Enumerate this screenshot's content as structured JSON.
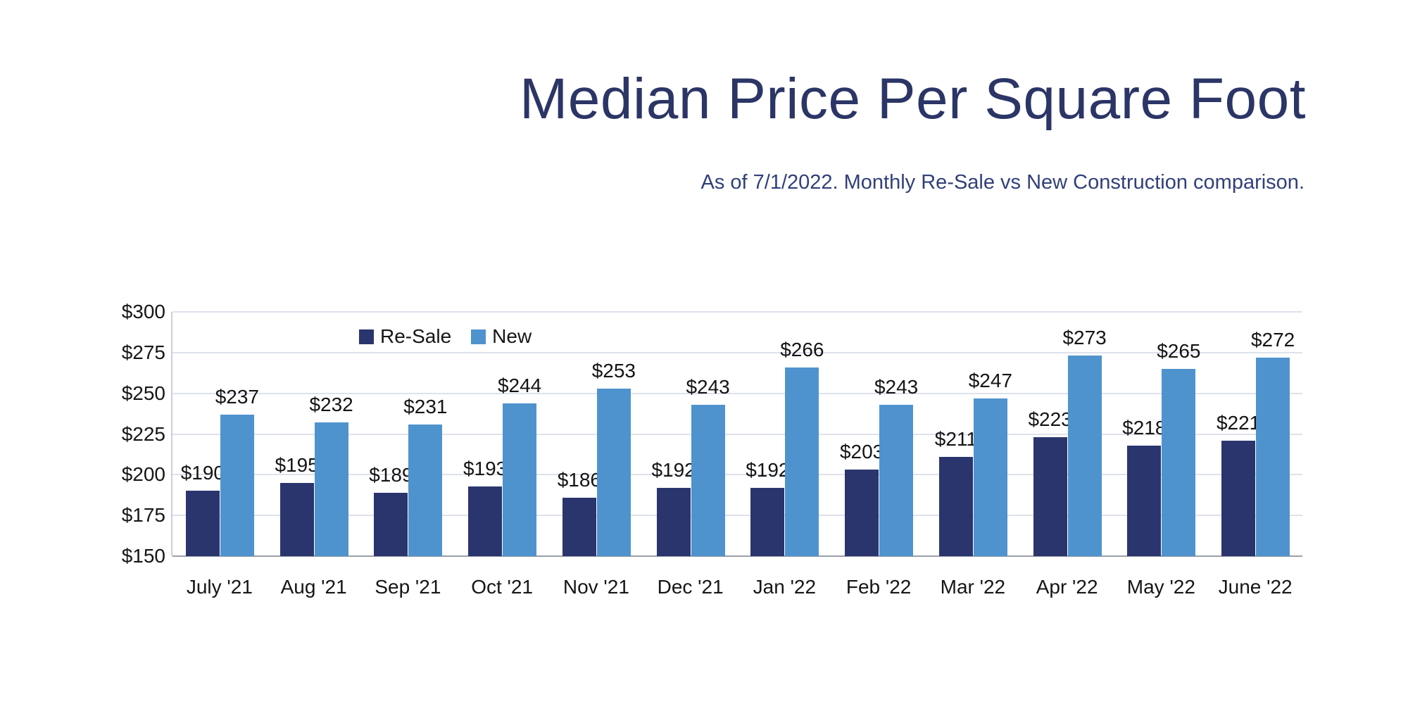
{
  "header": {
    "title": "Median Price Per Square Foot",
    "subtitle": "As of 7/1/2022. Monthly Re-Sale vs New Construction comparison."
  },
  "colors": {
    "title_text": "#2b3566",
    "subtitle_text": "#31407a",
    "resale_bar": "#2a356e",
    "new_bar": "#4f93ce",
    "gridline": "#dde2ec",
    "axis_line": "#9aa0a8",
    "label_text": "#141414",
    "background": "#ffffff"
  },
  "chart_data": {
    "type": "bar",
    "title": "Median Price Per Square Foot",
    "subtitle": "As of 7/1/2022. Monthly Re-Sale vs New Construction comparison.",
    "categories": [
      "July '21",
      "Aug '21",
      "Sep '21",
      "Oct '21",
      "Nov '21",
      "Dec '21",
      "Jan '22",
      "Feb '22",
      "Mar '22",
      "Apr '22",
      "May '22",
      "June '22"
    ],
    "series": [
      {
        "name": "Re-Sale",
        "color": "#2a356e",
        "values": [
          190,
          195,
          189,
          193,
          186,
          192,
          192,
          203,
          211,
          223,
          218,
          221
        ]
      },
      {
        "name": "New",
        "color": "#4f93ce",
        "values": [
          237,
          232,
          231,
          244,
          253,
          243,
          266,
          243,
          247,
          273,
          265,
          272
        ]
      }
    ],
    "value_prefix": "$",
    "ylim": [
      150,
      300
    ],
    "ytick_step": 25,
    "ytick_labels": [
      "$150",
      "$175",
      "$200",
      "$225",
      "$250",
      "$275",
      "$300"
    ],
    "grid": true,
    "legend_position": "top-left-inside"
  }
}
